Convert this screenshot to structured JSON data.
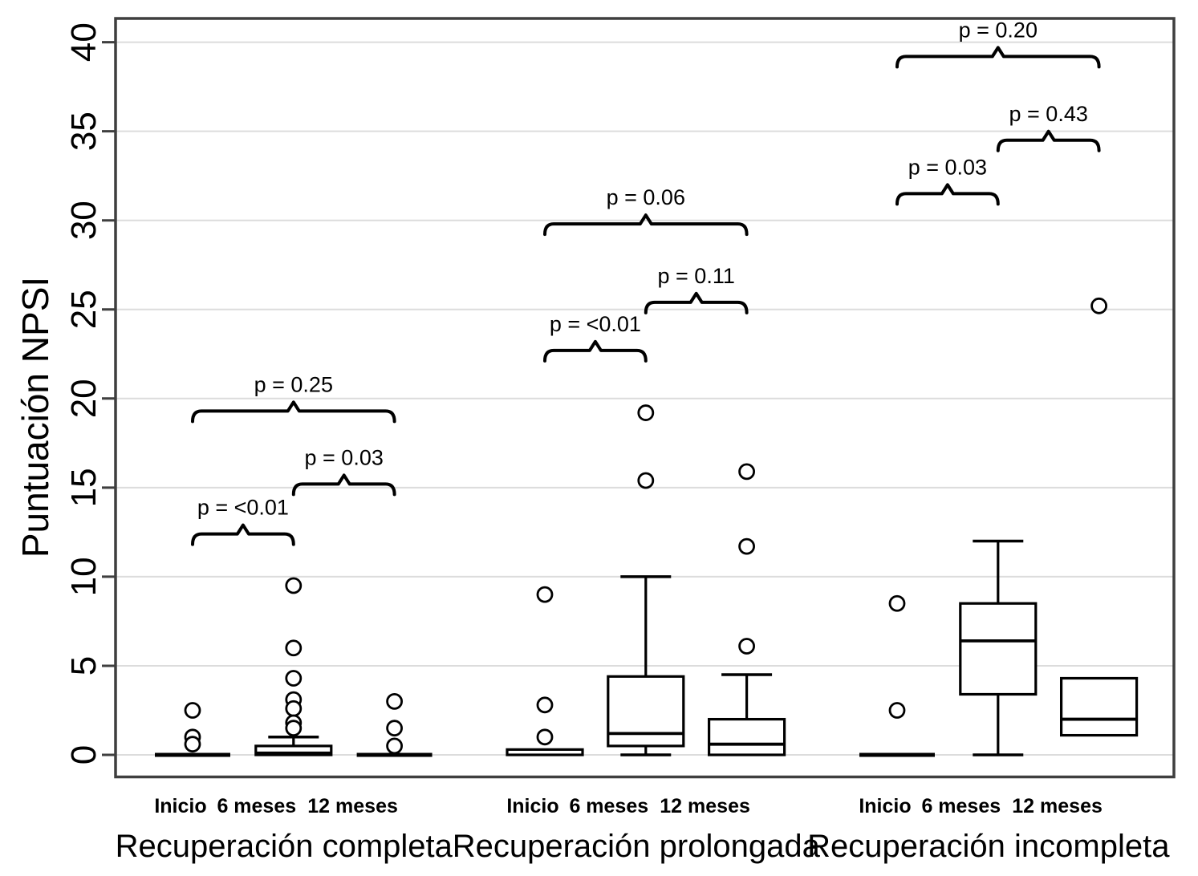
{
  "figure": {
    "background": "#ffffff"
  },
  "colors": {
    "line": "#000000",
    "frame": "#3f3f3f",
    "gridline": "#dcdcdc",
    "text": "#000000",
    "background": "#ffffff"
  },
  "chart_data": {
    "type": "boxplot",
    "title": "",
    "xlabel": "",
    "ylabel": "Puntuación NPSI",
    "ylim": [
      -1.2,
      41.3
    ],
    "yticks": [
      0,
      5,
      10,
      15,
      20,
      25,
      30,
      35,
      40
    ],
    "grid": "horizontal",
    "legend": "none",
    "groups": [
      {
        "label": "Recuperación completa",
        "boxes": [
          {
            "label": "Inicio",
            "whislo": 0,
            "q1": 0,
            "med": 0,
            "q3": 0,
            "whishi": 0,
            "outliers": [
              2.5,
              1.0,
              0.6
            ]
          },
          {
            "label": "6 meses",
            "whislo": 0,
            "q1": 0,
            "med": 0.1,
            "q3": 0.5,
            "whishi": 1.0,
            "outliers": [
              9.5,
              6.0,
              4.3,
              3.1,
              2.6,
              1.8,
              1.5
            ]
          },
          {
            "label": "12 meses",
            "whislo": 0,
            "q1": 0,
            "med": 0,
            "q3": 0,
            "whishi": 0,
            "outliers": [
              3.0,
              1.5,
              0.5
            ]
          }
        ],
        "comparisons": [
          {
            "label": "p = <0.01",
            "from": 0,
            "to": 1,
            "height": 12.4
          },
          {
            "label": "p = 0.03",
            "from": 1,
            "to": 2,
            "height": 15.2
          },
          {
            "label": "p = 0.25",
            "from": 0,
            "to": 2,
            "height": 19.3
          }
        ]
      },
      {
        "label": "Recuperación prolongada",
        "boxes": [
          {
            "label": "Inicio",
            "whislo": 0,
            "q1": 0,
            "med": 0.1,
            "q3": 0.3,
            "whishi": 0.3,
            "outliers": [
              9.0,
              2.8,
              1.0
            ]
          },
          {
            "label": "6 meses",
            "whislo": 0,
            "q1": 0.5,
            "med": 1.2,
            "q3": 4.4,
            "whishi": 10.0,
            "outliers": [
              19.2,
              15.4
            ]
          },
          {
            "label": "12 meses",
            "whislo": 0,
            "q1": 0,
            "med": 0.6,
            "q3": 2.0,
            "whishi": 4.5,
            "outliers": [
              15.9,
              11.7,
              6.1
            ]
          }
        ],
        "comparisons": [
          {
            "label": "p = <0.01",
            "from": 0,
            "to": 1,
            "height": 22.7
          },
          {
            "label": "p = 0.11",
            "from": 1,
            "to": 2,
            "height": 25.4
          },
          {
            "label": "p = 0.06",
            "from": 0,
            "to": 2,
            "height": 29.8
          }
        ]
      },
      {
        "label": "Recuperación incompleta",
        "boxes": [
          {
            "label": "Inicio",
            "whislo": 0,
            "q1": 0,
            "med": 0,
            "q3": 0,
            "whishi": 0,
            "outliers": [
              8.5,
              2.5
            ]
          },
          {
            "label": "6 meses",
            "whislo": 0,
            "q1": 3.4,
            "med": 6.4,
            "q3": 8.5,
            "whishi": 12.0,
            "outliers": []
          },
          {
            "label": "12 meses",
            "whislo": 1.1,
            "q1": 1.1,
            "med": 2.0,
            "q3": 4.3,
            "whishi": 4.3,
            "outliers": [
              25.2
            ]
          }
        ],
        "comparisons": [
          {
            "label": "p = 0.03",
            "from": 0,
            "to": 1,
            "height": 31.5
          },
          {
            "label": "p = 0.43",
            "from": 1,
            "to": 2,
            "height": 34.5
          },
          {
            "label": "p = 0.20",
            "from": 0,
            "to": 2,
            "height": 39.2
          }
        ]
      }
    ]
  }
}
